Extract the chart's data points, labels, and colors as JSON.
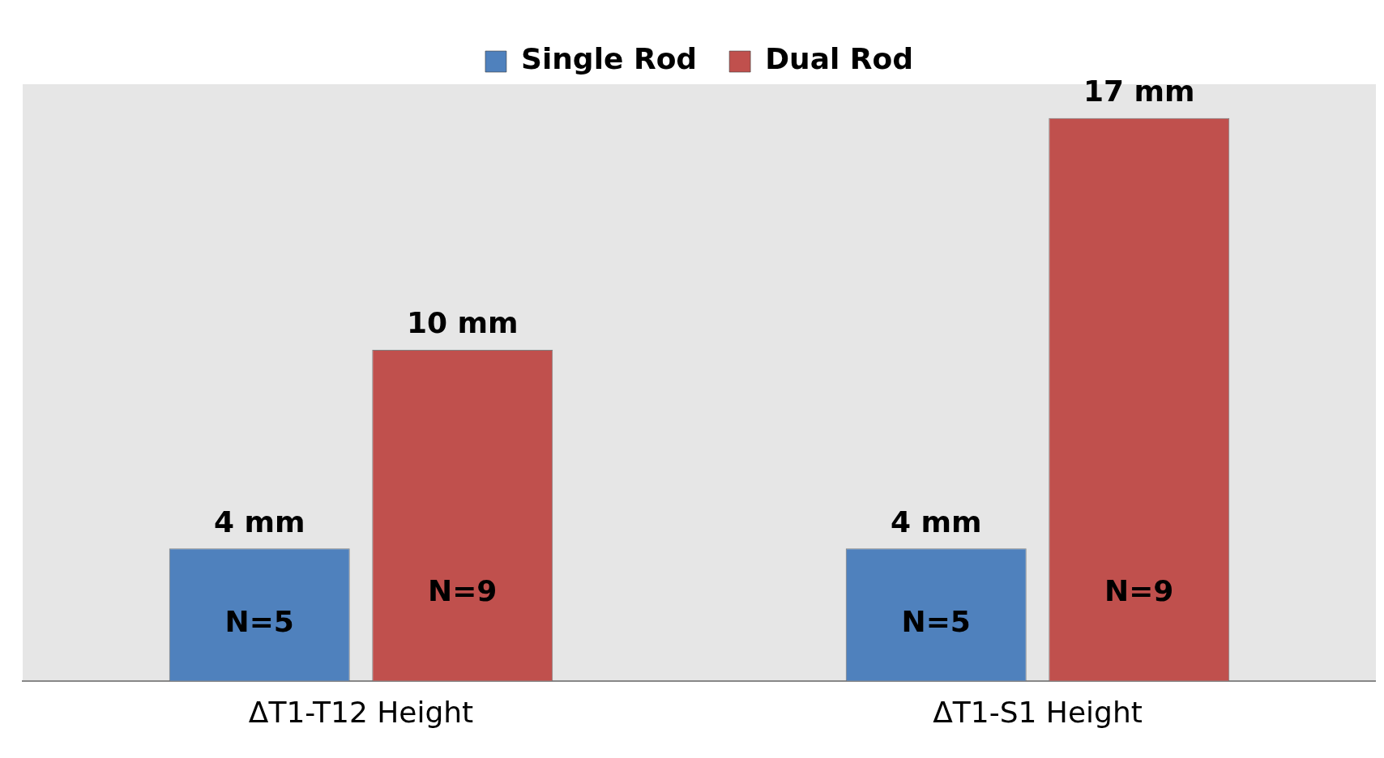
{
  "chart_data": {
    "type": "bar",
    "categories": [
      "ΔT1-T12 Height",
      "ΔT1-S1 Height"
    ],
    "series": [
      {
        "name": "Single Rod",
        "color": "#4f81bd",
        "values": [
          4,
          4
        ],
        "value_labels": [
          "4 mm",
          "4 mm"
        ]
      },
      {
        "name": "Dual Rod",
        "color": "#c0504d",
        "values": [
          10,
          17
        ],
        "value_labels": [
          "10 mm",
          "17 mm"
        ]
      }
    ],
    "annotations": [
      "N=5",
      "N=9",
      "N=5",
      "N=9"
    ],
    "legend": "top"
  }
}
